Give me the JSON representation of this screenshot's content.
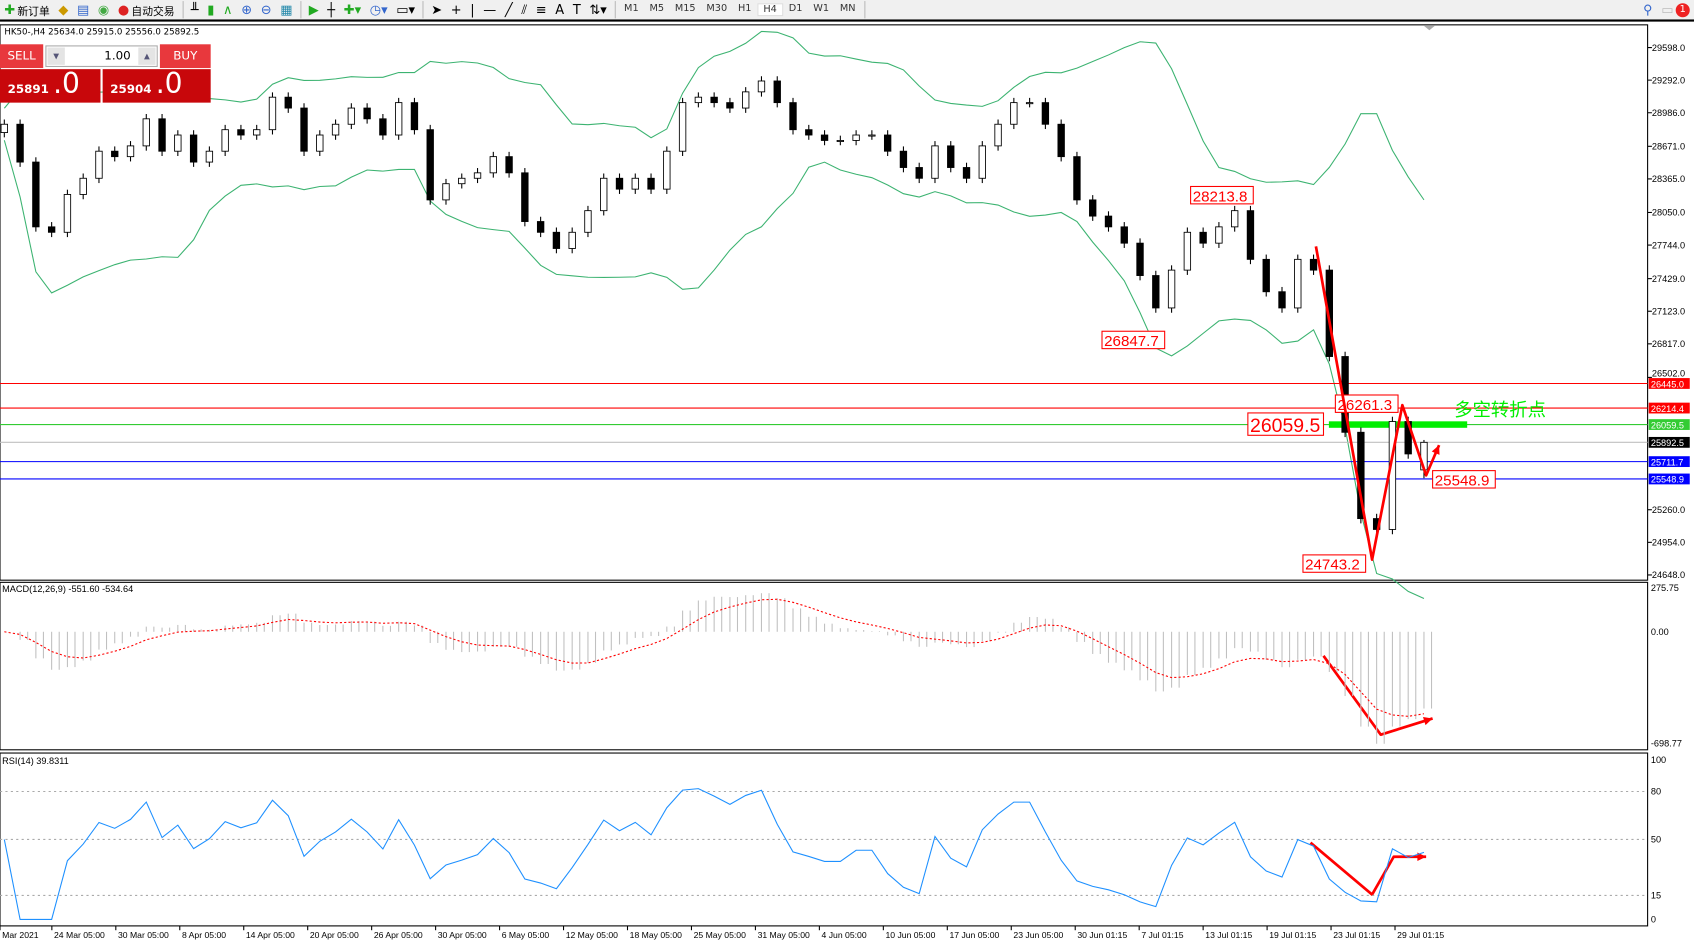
{
  "toolbar": {
    "new_order": "新订单",
    "auto_trading": "自动交易",
    "timeframes": [
      "M1",
      "M5",
      "M15",
      "M30",
      "H1",
      "H4",
      "D1",
      "W1",
      "MN"
    ],
    "active_timeframe": "H4",
    "notifications": "1"
  },
  "symbol_info": "HK50-,H4  25634.0 25915.0 25556.0 25892.5",
  "trade_panel": {
    "sell": "SELL",
    "buy": "BUY",
    "lot": "1.00",
    "sell_price_main": "25891",
    "sell_price_frac": ".0",
    "buy_price_main": "25904",
    "buy_price_frac": ".0"
  },
  "chart_data": {
    "type": "candlestick",
    "symbol": "HK50-",
    "timeframe": "H4",
    "last_candle": {
      "open": 25634.0,
      "high": 25915.0,
      "low": 25556.0,
      "close": 25892.5
    },
    "close": [
      28878,
      28523,
      27915,
      27864,
      28219,
      28371,
      28625,
      28574,
      28675,
      28929,
      28625,
      28777,
      28523,
      28625,
      28827,
      28777,
      28827,
      29132,
      29030,
      28625,
      28777,
      28878,
      29030,
      28929,
      28777,
      29081,
      28827,
      28168,
      28320,
      28371,
      28422,
      28574,
      28422,
      27965,
      27864,
      27712,
      27864,
      28067,
      28371,
      28269,
      28371,
      28269,
      28625,
      29081,
      29132,
      29081,
      29030,
      29182,
      29284,
      29081,
      28827,
      28777,
      28726,
      28726,
      28777,
      28777,
      28625,
      28472,
      28371,
      28675,
      28472,
      28371,
      28675,
      28878,
      29081,
      29081,
      28878,
      28574,
      28168,
      28016,
      27915,
      27762,
      27458,
      27154,
      27509,
      27864,
      27762,
      27915,
      28067,
      27610,
      27306,
      27154,
      27610,
      27509,
      26698,
      25987,
      25177,
      25075,
      26088,
      25784,
      25892.5
    ],
    "ylim": [
      24648,
      29598
    ],
    "price_ticks": [
      "29598.0",
      "29292.0",
      "28986.0",
      "28671.0",
      "28365.0",
      "28050.0",
      "27744.0",
      "27429.0",
      "27123.0",
      "26817.0",
      "26502.0",
      "25260.0",
      "24954.0",
      "24648.0"
    ],
    "x_ticks": [
      "Mar 2021",
      "24 Mar 05:00",
      "30 Mar 05:00",
      "8 Apr 05:00",
      "14 Apr 05:00",
      "20 Apr 05:00",
      "26 Apr 05:00",
      "30 Apr 05:00",
      "6 May 05:00",
      "12 May 05:00",
      "18 May 05:00",
      "25 May 05:00",
      "31 May 05:00",
      "4 Jun 05:00",
      "10 Jun 05:00",
      "17 Jun 05:00",
      "23 Jun 05:00",
      "30 Jun 01:15",
      "7 Jul 01:15",
      "13 Jul 01:15",
      "19 Jul 01:15",
      "23 Jul 01:15",
      "29 Jul 01:15"
    ],
    "hlines": [
      {
        "value": "26445.0",
        "color": "#ff0000"
      },
      {
        "value": "26214.4",
        "color": "#ff0000"
      },
      {
        "value": "26059.5",
        "color": "#33cc33"
      },
      {
        "value": "25892.5",
        "color": "#000000",
        "line": "#c0c0c0"
      },
      {
        "value": "25711.7",
        "color": "#0000ff"
      },
      {
        "value": "25548.9",
        "color": "#0000ff"
      }
    ],
    "price_labels": [
      {
        "text": "28213.8",
        "value": 28213.8
      },
      {
        "text": "26847.7",
        "value": 26847.7
      },
      {
        "text": "26261.3",
        "value": 26261.3
      },
      {
        "text": "26059.5",
        "value": 26059.5
      },
      {
        "text": "25548.9",
        "value": 25548.9
      },
      {
        "text": "24743.2",
        "value": 24743.2
      }
    ],
    "annotation": "多空转折点",
    "macd": {
      "label": "MACD(12,26,9) -551.60 -534.64",
      "ticks": [
        "275.75",
        "0.00",
        "-698.77"
      ],
      "ylim": [
        -698.77,
        275.75
      ]
    },
    "rsi": {
      "label": "RSI(14) 39.8311",
      "ticks": [
        "100",
        "80",
        "50",
        "15",
        "0"
      ]
    },
    "colors": {
      "bands": "#3cb371",
      "signal": "#ff0000",
      "histogram": "#c0c0c0",
      "rsi": "#1e90ff",
      "arrows": "#ff0000",
      "pivot": "#00ee00"
    }
  }
}
